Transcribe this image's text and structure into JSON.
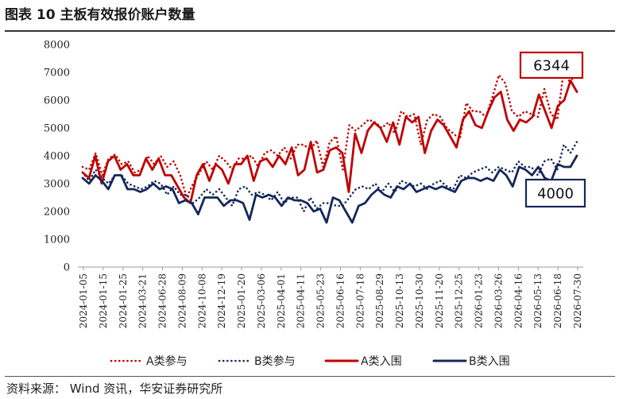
{
  "header": {
    "title": "图表 10 主板有效报价账户数量"
  },
  "footer": {
    "source": "资料来源：  Wind 资讯，华安证券研究所"
  },
  "chart_data": {
    "type": "line",
    "title": "图表 10 主板有效报价账户数量",
    "ylim": [
      0,
      8000
    ],
    "yticks": [
      0,
      1000,
      2000,
      3000,
      4000,
      5000,
      6000,
      7000,
      8000
    ],
    "grid": false,
    "legend_position": "bottom",
    "x_tick_labels": [
      "2024-01-05",
      "2024-01-15",
      "2024-01-25",
      "2024-03-21",
      "2024-06-28",
      "2024-08-09",
      "2024-10-08",
      "2024-12-19",
      "2025-01-20",
      "2025-03-06",
      "2025-04-01",
      "2025-04-11",
      "2025-05-23",
      "2025-06-16",
      "2025-07-18",
      "2025-08-29",
      "2025-10-13",
      "2025-10-30",
      "2025-11-20",
      "2025-12-25",
      "2026-01-23",
      "2026-03-26",
      "2026-04-16",
      "2026-05-13",
      "2026-06-18",
      "2026-07-30"
    ],
    "series": [
      {
        "name": "A类参与",
        "color": "#C00000",
        "style": "dotted",
        "values": [
          3600,
          3500,
          4100,
          3300,
          3900,
          4050,
          3700,
          3800,
          3400,
          3500,
          4000,
          3700,
          4000,
          3600,
          3800,
          3300,
          2500,
          3000,
          3400,
          3800,
          3500,
          4000,
          3800,
          3500,
          3900,
          3900,
          4000,
          3600,
          4100,
          4200,
          4000,
          4300,
          3900,
          4400,
          4400,
          4200,
          4550,
          3600,
          4500,
          4700,
          3500,
          5100,
          4900,
          5100,
          5300,
          5200,
          5000,
          5200,
          4800,
          5600,
          5400,
          5500,
          4400,
          5300,
          5500,
          5400,
          5000,
          4800,
          4600,
          5900,
          5600,
          5600,
          5400,
          6100,
          6900,
          6600,
          5600,
          5400,
          5600,
          5500,
          5400,
          6400,
          5500,
          5300,
          7100,
          6600,
          7200
        ]
      },
      {
        "name": "B类参与",
        "color": "#14285A",
        "style": "dotted",
        "values": [
          3400,
          3100,
          3500,
          3200,
          3000,
          3300,
          3300,
          3000,
          2900,
          2800,
          2900,
          3100,
          3000,
          2600,
          2900,
          2600,
          2600,
          2300,
          2500,
          2800,
          2600,
          2800,
          2500,
          2200,
          2800,
          2900,
          2600,
          2700,
          2600,
          2400,
          2700,
          2300,
          2500,
          2500,
          2000,
          2500,
          2100,
          2300,
          2300,
          2200,
          2200,
          2500,
          2800,
          2900,
          2800,
          3000,
          2700,
          3000,
          2700,
          3100,
          3000,
          2900,
          3000,
          2800,
          3000,
          3100,
          2900,
          2800,
          3300,
          3200,
          3400,
          3500,
          3600,
          3400,
          3600,
          3500,
          3400,
          3800,
          3600,
          3600,
          3300,
          3800,
          3900,
          3500,
          4400,
          4100,
          4500
        ]
      },
      {
        "name": "A类入围",
        "color": "#C00000",
        "style": "solid",
        "values": [
          3400,
          3200,
          4000,
          3000,
          3800,
          4000,
          3500,
          3700,
          3300,
          3300,
          3900,
          3500,
          3900,
          3300,
          3300,
          2900,
          2500,
          2300,
          3300,
          3700,
          3100,
          3700,
          3500,
          3000,
          3700,
          3700,
          4000,
          3100,
          3800,
          3900,
          3600,
          4000,
          3700,
          4300,
          3300,
          3500,
          4500,
          3400,
          3500,
          4200,
          4300,
          4100,
          2700,
          4800,
          4100,
          4900,
          5200,
          5000,
          4500,
          5200,
          4400,
          5400,
          5200,
          5400,
          4100,
          4900,
          5300,
          5100,
          4700,
          4300,
          5300,
          5600,
          5100,
          5000,
          5600,
          6100,
          6300,
          5300,
          4900,
          5300,
          5200,
          5400,
          6200,
          5600,
          5000,
          5800,
          6000,
          6700,
          6300
        ]
      },
      {
        "name": "B类入围",
        "color": "#14285A",
        "style": "solid",
        "values": [
          3200,
          3000,
          3300,
          3100,
          2800,
          3300,
          3300,
          2800,
          2800,
          2700,
          2800,
          3000,
          2800,
          2900,
          2800,
          2300,
          2400,
          2300,
          1900,
          2500,
          2500,
          2500,
          2200,
          2400,
          2400,
          2300,
          1700,
          2600,
          2500,
          2600,
          2500,
          2200,
          2500,
          2400,
          2400,
          2300,
          2000,
          2100,
          1600,
          2500,
          2400,
          2000,
          1600,
          2200,
          2300,
          2600,
          2800,
          2600,
          2500,
          2900,
          2800,
          3000,
          2700,
          2800,
          2900,
          2800,
          2900,
          2800,
          2700,
          3100,
          3200,
          3200,
          3100,
          3200,
          3100,
          3500,
          3300,
          2900,
          3600,
          3500,
          3300,
          3600,
          3200,
          3100,
          3700,
          3600,
          3600,
          4000
        ]
      }
    ],
    "annotations": [
      {
        "text": "6344",
        "color": "#C00000"
      },
      {
        "text": "4000",
        "color": "#14285A"
      }
    ]
  }
}
